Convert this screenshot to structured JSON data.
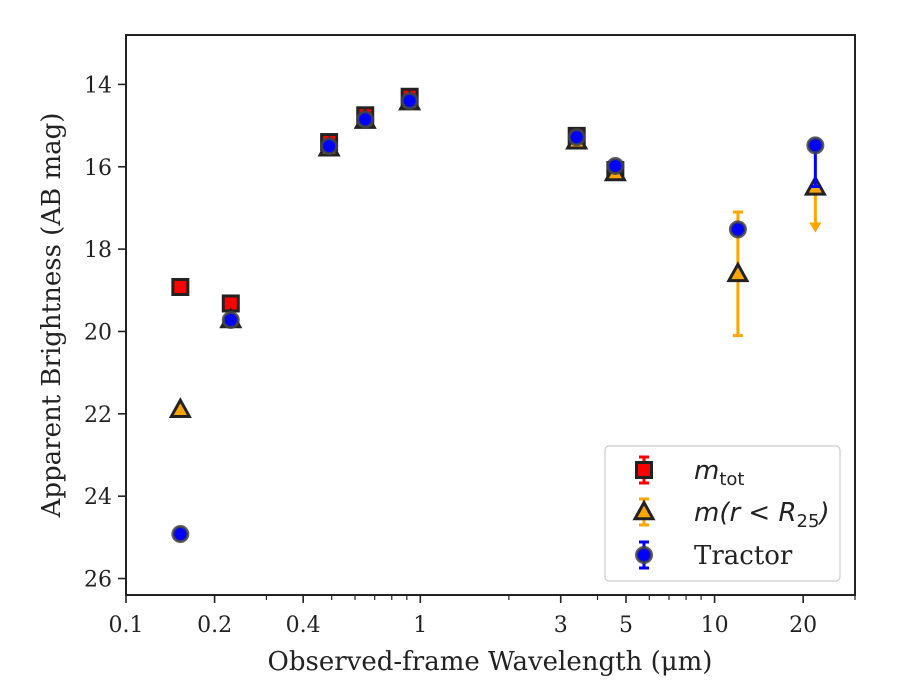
{
  "chart_data": {
    "type": "scatter",
    "xlabel": "Observed-frame Wavelength (μm)",
    "ylabel": "Apparent Brightness (AB mag)",
    "xscale": "log",
    "xlim": [
      0.1,
      30
    ],
    "ylim": [
      26.4,
      12.8
    ],
    "y_inverted": true,
    "grid": false,
    "legend_position": "lower-right",
    "x_ticks": [
      {
        "value": 0.1,
        "label": "0.1"
      },
      {
        "value": 0.2,
        "label": "0.2"
      },
      {
        "value": 0.4,
        "label": "0.4"
      },
      {
        "value": 1,
        "label": "1"
      },
      {
        "value": 3,
        "label": "3"
      },
      {
        "value": 5,
        "label": "5"
      },
      {
        "value": 10,
        "label": "10"
      },
      {
        "value": 20,
        "label": "20"
      }
    ],
    "y_ticks": [
      {
        "value": 14,
        "label": "14"
      },
      {
        "value": 16,
        "label": "16"
      },
      {
        "value": 18,
        "label": "18"
      },
      {
        "value": 20,
        "label": "20"
      },
      {
        "value": 22,
        "label": "22"
      },
      {
        "value": 24,
        "label": "24"
      },
      {
        "value": 26,
        "label": "26"
      }
    ],
    "series": [
      {
        "name": "m_tot",
        "legend_main": "m",
        "legend_sub": "tot",
        "marker": "square",
        "color": "#ff0000",
        "edge_color": "#222222",
        "points": [
          {
            "x": 0.153,
            "y": 18.92,
            "err": 0.05
          },
          {
            "x": 0.227,
            "y": 19.32,
            "err": 0.05
          },
          {
            "x": 0.49,
            "y": 15.4,
            "err": 0.1
          },
          {
            "x": 0.65,
            "y": 14.75,
            "err": 0.1
          },
          {
            "x": 0.92,
            "y": 14.3,
            "err": 0.1
          },
          {
            "x": 3.4,
            "y": 15.25,
            "err": 0.05
          },
          {
            "x": 4.6,
            "y": 16.08,
            "err": 0.05
          }
        ]
      },
      {
        "name": "m(r < R25)",
        "legend_main": "m(r < R",
        "legend_sub": "25",
        "legend_tail": ")",
        "marker": "triangle",
        "color": "#ffa500",
        "edge_color": "#222222",
        "points": [
          {
            "x": 0.153,
            "y": 21.9,
            "err": 0.05
          },
          {
            "x": 0.227,
            "y": 19.72,
            "err": 0.05
          },
          {
            "x": 0.49,
            "y": 15.55,
            "err": 0.05
          },
          {
            "x": 0.65,
            "y": 14.88,
            "err": 0.05
          },
          {
            "x": 0.92,
            "y": 14.43,
            "err": 0.05
          },
          {
            "x": 3.4,
            "y": 15.38,
            "err": 0.05
          },
          {
            "x": 4.6,
            "y": 16.15,
            "err": 0.05
          },
          {
            "x": 12.0,
            "y": 18.6,
            "err_low": 1.5,
            "err_high": 1.5
          },
          {
            "x": 22.0,
            "y": 16.5,
            "upper_limit": true,
            "arrow_to": 17.5
          }
        ]
      },
      {
        "name": "Tractor",
        "marker": "circle",
        "color": "#0000ff",
        "edge_color": "#444444",
        "points": [
          {
            "x": 0.153,
            "y": 24.92,
            "err": 0.05
          },
          {
            "x": 0.227,
            "y": 19.72,
            "err": 0.05
          },
          {
            "x": 0.49,
            "y": 15.5,
            "err": 0.05
          },
          {
            "x": 0.65,
            "y": 14.85,
            "err": 0.05
          },
          {
            "x": 0.92,
            "y": 14.4,
            "err": 0.05
          },
          {
            "x": 3.4,
            "y": 15.28,
            "err": 0.05
          },
          {
            "x": 4.6,
            "y": 15.98,
            "err": 0.05
          },
          {
            "x": 12.0,
            "y": 17.52,
            "err": 0.05
          },
          {
            "x": 22.0,
            "y": 15.48,
            "err_low": 0.0,
            "err_high": 1.0
          }
        ]
      }
    ]
  }
}
